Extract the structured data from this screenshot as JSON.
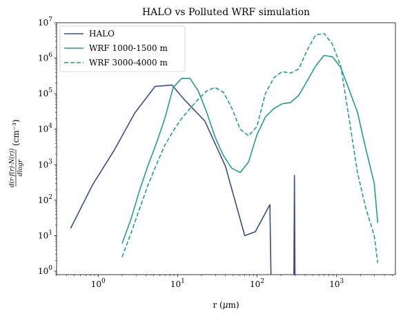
{
  "chart_data": {
    "type": "line",
    "title": "HALO vs Polluted WRF simulation",
    "xlabel": "r (μm)",
    "ylabel": "d(r·f(r)·N(r)) / dlogr (cm⁻³)",
    "ylabel_fraction_numerator": "d(r·f(r)·N(r))",
    "ylabel_fraction_denominator": "dlogr",
    "ylabel_units": "(cm⁻³)",
    "x_scale": "log",
    "y_scale": "log",
    "xlim": [
      0.3,
      5500
    ],
    "ylim": [
      0.8,
      10000000
    ],
    "x_ticks": [
      {
        "value": 1,
        "base": "10",
        "exp": "0"
      },
      {
        "value": 10,
        "base": "10",
        "exp": "1"
      },
      {
        "value": 100,
        "base": "10",
        "exp": "2"
      },
      {
        "value": 1000,
        "base": "10",
        "exp": "3"
      }
    ],
    "y_ticks": [
      {
        "value": 1,
        "base": "10",
        "exp": "0"
      },
      {
        "value": 10,
        "base": "10",
        "exp": "1"
      },
      {
        "value": 100,
        "base": "10",
        "exp": "2"
      },
      {
        "value": 1000,
        "base": "10",
        "exp": "3"
      },
      {
        "value": 10000,
        "base": "10",
        "exp": "4"
      },
      {
        "value": 100000,
        "base": "10",
        "exp": "5"
      },
      {
        "value": 1000000,
        "base": "10",
        "exp": "6"
      },
      {
        "value": 10000000,
        "base": "10",
        "exp": "7"
      }
    ],
    "legend_position": "top-left",
    "grid": false,
    "series": [
      {
        "name": "HALO",
        "color": "#3b4a8a",
        "style": "solid",
        "x": [
          0.45,
          0.85,
          1.6,
          2.9,
          5.2,
          8.5,
          12,
          22,
          40,
          70,
          95,
          145,
          150,
          150,
          290,
          295,
          300
        ],
        "y": [
          16,
          270,
          2600,
          29000,
          160000,
          175000,
          70000,
          17000,
          900,
          10,
          13,
          75,
          0.5,
          null,
          0.5,
          500,
          0.5
        ]
      },
      {
        "name": "WRF 1000-1500 m",
        "color": "#1f9e89",
        "style": "solid",
        "x": [
          2.0,
          2.6,
          3.3,
          4.2,
          5.4,
          6.9,
          8.8,
          11.2,
          14.3,
          18.2,
          23.2,
          29.6,
          37.7,
          48,
          61.3,
          78.1,
          99.6,
          127,
          162,
          206,
          263,
          335,
          427,
          544,
          694,
          885,
          1128,
          1437,
          1832,
          2335,
          2977,
          3300
        ],
        "y": [
          6,
          30,
          180,
          900,
          4000,
          20000,
          150000,
          270000,
          270000,
          120000,
          30000,
          6000,
          1800,
          800,
          600,
          1200,
          7000,
          22000,
          38000,
          52000,
          56000,
          90000,
          230000,
          600000,
          1200000,
          1100000,
          550000,
          130000,
          30000,
          2800,
          300,
          23
        ]
      },
      {
        "name": "WRF 3000-4000 m",
        "color": "#1f9e89",
        "style": "dashed",
        "x": [
          2.0,
          2.6,
          3.3,
          4.2,
          5.4,
          6.9,
          8.8,
          11.2,
          14.3,
          18.2,
          23.2,
          29.6,
          37.7,
          48,
          61.3,
          78.1,
          99.6,
          127,
          162,
          206,
          263,
          335,
          427,
          544,
          694,
          885,
          1128,
          1437,
          1832,
          2335,
          2977,
          3300
        ],
        "y": [
          2.5,
          12,
          55,
          250,
          1000,
          3500,
          9000,
          20000,
          38000,
          70000,
          120000,
          150000,
          110000,
          40000,
          10000,
          6500,
          12000,
          100000,
          280000,
          420000,
          380000,
          500000,
          1700000,
          4500000,
          5000000,
          2500000,
          600000,
          20000,
          600,
          60,
          10,
          1.7
        ]
      }
    ]
  }
}
